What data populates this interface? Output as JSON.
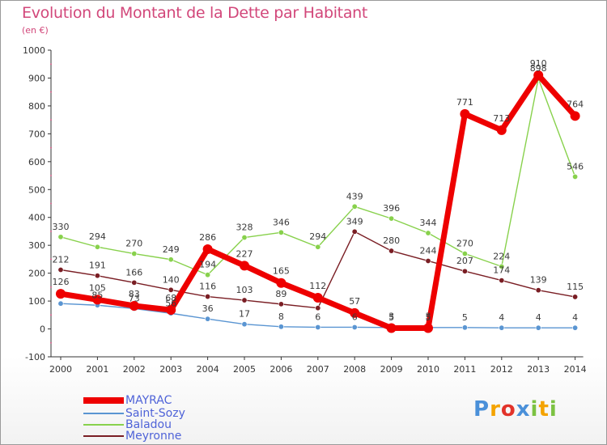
{
  "title": "Evolution du Montant de la Dette par Habitant",
  "subtitle": "(en €)",
  "chart_data": {
    "type": "line",
    "title": "Evolution du Montant de la Dette par Habitant",
    "ylabel": "(en €)",
    "xlabel": "",
    "ylim": [
      -100,
      1000
    ],
    "yticks": [
      -100,
      0,
      100,
      200,
      300,
      400,
      500,
      600,
      700,
      800,
      900,
      1000
    ],
    "categories": [
      "2000",
      "2001",
      "2002",
      "2003",
      "2004",
      "2005",
      "2006",
      "2007",
      "2008",
      "2009",
      "2010",
      "2011",
      "2012",
      "2013",
      "2014"
    ],
    "series": [
      {
        "name": "MAYRAC",
        "color": "#ee0000",
        "values": [
          126,
          105,
          83,
          68,
          286,
          227,
          165,
          112,
          57,
          3,
          3,
          771,
          713,
          910,
          764
        ],
        "labels": [
          "126",
          "105",
          "83",
          "68",
          "286",
          "227",
          "165",
          "112",
          "57",
          "3",
          "3",
          "771",
          "713",
          "910",
          "764"
        ]
      },
      {
        "name": "Saint-Sozy",
        "color": "#5a95d2",
        "values": [
          91,
          85,
          73,
          56,
          36,
          17,
          8,
          6,
          6,
          5,
          5,
          5,
          4,
          4,
          4
        ],
        "labels": [
          "",
          "85",
          "73",
          "56",
          "36",
          "17",
          "8",
          "6",
          "6",
          "5",
          "5",
          "5",
          "4",
          "4",
          "4"
        ]
      },
      {
        "name": "Baladou",
        "color": "#88d14c",
        "values": [
          330,
          294,
          270,
          249,
          194,
          328,
          346,
          294,
          439,
          396,
          344,
          270,
          224,
          898,
          546
        ],
        "labels": [
          "330",
          "294",
          "270",
          "249",
          "194",
          "328",
          "346",
          "294",
          "439",
          "396",
          "344",
          "270",
          "224",
          "898",
          "546"
        ]
      },
      {
        "name": "Meyronne",
        "color": "#7a1e24",
        "values": [
          212,
          191,
          166,
          140,
          116,
          103,
          89,
          75,
          349,
          280,
          244,
          207,
          174,
          139,
          115
        ],
        "labels": [
          "212",
          "191",
          "166",
          "140",
          "116",
          "103",
          "89",
          "",
          "349",
          "280",
          "244",
          "207",
          "174",
          "139",
          "115"
        ]
      }
    ],
    "legend": "bottom-left",
    "grid": false
  },
  "legend": {
    "items": [
      {
        "label": "MAYRAC",
        "color": "#ee0000"
      },
      {
        "label": "Saint-Sozy",
        "color": "#5a95d2"
      },
      {
        "label": "Baladou",
        "color": "#88d14c"
      },
      {
        "label": "Meyronne",
        "color": "#7a1e24"
      }
    ]
  },
  "logo": {
    "text": "Proxiti",
    "letters": [
      "P",
      "r",
      "o",
      "x",
      "i",
      "t",
      "i"
    ],
    "colors": [
      "#4a90d9",
      "#f4a300",
      "#e2332a",
      "#4a90d9",
      "#7cc242",
      "#f4a300",
      "#7cc242"
    ]
  }
}
